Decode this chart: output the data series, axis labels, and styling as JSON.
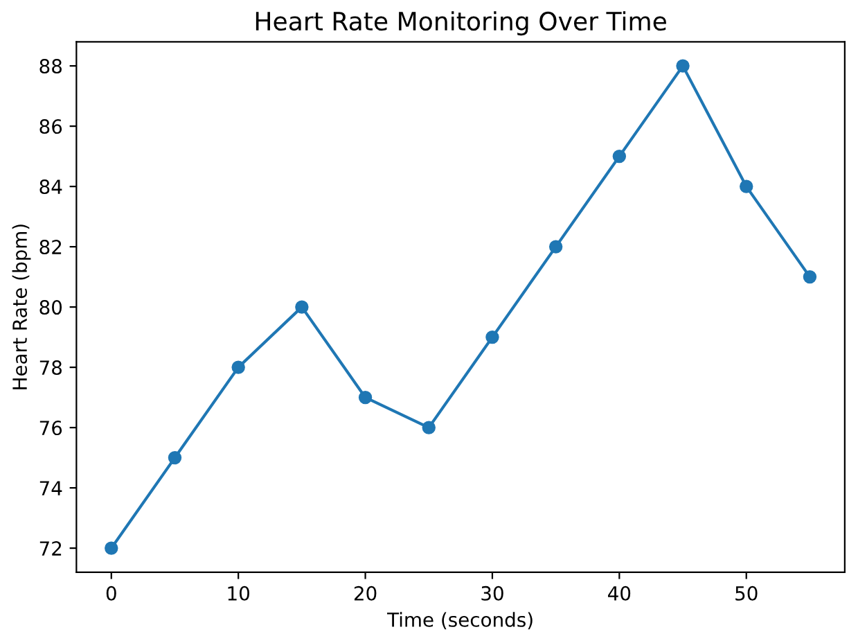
{
  "chart_data": {
    "type": "line",
    "title": "Heart Rate Monitoring Over Time",
    "xlabel": "Time (seconds)",
    "ylabel": "Heart Rate (bpm)",
    "x": [
      0,
      5,
      10,
      15,
      20,
      25,
      30,
      35,
      40,
      45,
      50,
      55
    ],
    "series": [
      {
        "color": "#1f77b4",
        "values": [
          72,
          75,
          78,
          80,
          77,
          76,
          79,
          82,
          85,
          88,
          84,
          81
        ]
      }
    ],
    "xlim": [
      -2.75,
      57.75
    ],
    "ylim": [
      71.2,
      88.8
    ],
    "xticks": [
      0,
      10,
      20,
      30,
      40,
      50
    ],
    "yticks": [
      72,
      74,
      76,
      78,
      80,
      82,
      84,
      86,
      88
    ],
    "marker": "circle",
    "line_style": "solid",
    "grid": false,
    "legend": false
  }
}
